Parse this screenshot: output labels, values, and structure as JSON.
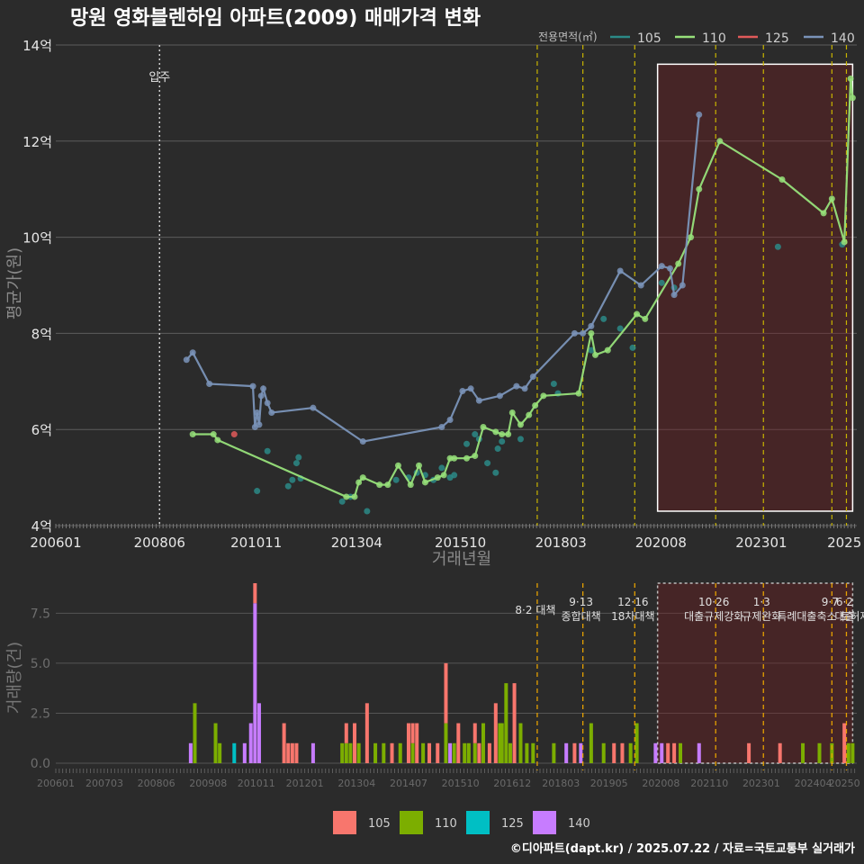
{
  "chart_data": [
    {
      "type": "line",
      "title": "망원 영화블렌하임 아파트(2009) 매매가격 변화",
      "xlabel": "거래년월",
      "ylabel": "평균가(원)",
      "ylim": [
        4,
        14
      ],
      "xlim": [
        2006.0,
        2025.3
      ],
      "x_ticks": [
        {
          "v": 2006.0,
          "label": "200601"
        },
        {
          "v": 2008.5,
          "label": "200806"
        },
        {
          "v": 2010.83,
          "label": "201011"
        },
        {
          "v": 2013.25,
          "label": "201304"
        },
        {
          "v": 2015.75,
          "label": "201510"
        },
        {
          "v": 2018.17,
          "label": "201803"
        },
        {
          "v": 2020.58,
          "label": "202008"
        },
        {
          "v": 2023.0,
          "label": "202301"
        },
        {
          "v": 2025.0,
          "label": "2025"
        }
      ],
      "y_ticks": [
        {
          "v": 4,
          "label": "4억"
        },
        {
          "v": 6,
          "label": "6억"
        },
        {
          "v": 8,
          "label": "8억"
        },
        {
          "v": 10,
          "label": "10억"
        },
        {
          "v": 12,
          "label": "12억"
        },
        {
          "v": 14,
          "label": "14억"
        }
      ],
      "legend_title": "전용면적(㎡)",
      "series": [
        {
          "name": "105",
          "color": "#2b8a87",
          "points": [
            [
              2010.85,
              4.72
            ],
            [
              2011.1,
              5.55
            ],
            [
              2011.6,
              4.82
            ],
            [
              2011.7,
              4.95
            ],
            [
              2011.8,
              5.3
            ],
            [
              2011.85,
              5.42
            ],
            [
              2011.9,
              4.98
            ],
            [
              2012.9,
              4.5
            ],
            [
              2013.1,
              4.6
            ],
            [
              2013.5,
              4.3
            ],
            [
              2014.2,
              4.95
            ],
            [
              2014.5,
              5.0
            ],
            [
              2014.7,
              5.1
            ],
            [
              2014.9,
              5.05
            ],
            [
              2015.1,
              4.95
            ],
            [
              2015.3,
              5.2
            ],
            [
              2015.5,
              5.0
            ],
            [
              2015.6,
              5.05
            ],
            [
              2015.9,
              5.7
            ],
            [
              2016.1,
              5.9
            ],
            [
              2016.2,
              5.8
            ],
            [
              2016.4,
              5.3
            ],
            [
              2016.6,
              5.1
            ],
            [
              2016.65,
              5.6
            ],
            [
              2016.75,
              5.75
            ],
            [
              2017.2,
              5.8
            ],
            [
              2018.0,
              6.95
            ],
            [
              2018.1,
              6.75
            ],
            [
              2018.9,
              7.65
            ],
            [
              2019.2,
              8.3
            ],
            [
              2019.6,
              8.1
            ],
            [
              2019.9,
              7.7
            ],
            [
              2020.6,
              9.05
            ],
            [
              2020.9,
              8.95
            ],
            [
              2023.4,
              9.8
            ],
            [
              2024.95,
              9.85
            ]
          ]
        },
        {
          "name": "110",
          "color": "#97e07a",
          "points": [
            [
              2009.3,
              5.9
            ],
            [
              2009.8,
              5.9
            ],
            [
              2009.9,
              5.78
            ],
            [
              2013.0,
              4.6
            ],
            [
              2013.2,
              4.6
            ],
            [
              2013.3,
              4.9
            ],
            [
              2013.4,
              5.0
            ],
            [
              2013.8,
              4.85
            ],
            [
              2014.0,
              4.85
            ],
            [
              2014.25,
              5.25
            ],
            [
              2014.55,
              4.85
            ],
            [
              2014.75,
              5.25
            ],
            [
              2014.9,
              4.9
            ],
            [
              2015.2,
              5.0
            ],
            [
              2015.35,
              5.05
            ],
            [
              2015.5,
              5.4
            ],
            [
              2015.6,
              5.4
            ],
            [
              2015.9,
              5.4
            ],
            [
              2016.1,
              5.45
            ],
            [
              2016.3,
              6.05
            ],
            [
              2016.6,
              5.95
            ],
            [
              2016.75,
              5.9
            ],
            [
              2016.9,
              5.9
            ],
            [
              2017.0,
              6.35
            ],
            [
              2017.2,
              6.1
            ],
            [
              2017.4,
              6.3
            ],
            [
              2017.55,
              6.5
            ],
            [
              2017.75,
              6.7
            ],
            [
              2018.6,
              6.75
            ],
            [
              2018.9,
              8.0
            ],
            [
              2019.0,
              7.55
            ],
            [
              2019.3,
              7.65
            ],
            [
              2020.0,
              8.4
            ],
            [
              2020.2,
              8.3
            ],
            [
              2021.0,
              9.45
            ],
            [
              2021.3,
              10.0
            ],
            [
              2021.5,
              11.0
            ],
            [
              2022.0,
              12.0
            ],
            [
              2023.5,
              11.2
            ],
            [
              2024.5,
              10.5
            ],
            [
              2024.7,
              10.8
            ],
            [
              2025.0,
              9.9
            ],
            [
              2025.15,
              13.3
            ],
            [
              2025.2,
              12.9
            ]
          ]
        },
        {
          "name": "125",
          "color": "#e05a5a",
          "points": [
            [
              2010.3,
              5.9
            ]
          ]
        },
        {
          "name": "140",
          "color": "#7a93b8",
          "points": [
            [
              2009.15,
              7.45
            ],
            [
              2009.3,
              7.6
            ],
            [
              2009.7,
              6.95
            ],
            [
              2010.75,
              6.9
            ],
            [
              2010.8,
              6.05
            ],
            [
              2010.85,
              6.35
            ],
            [
              2010.9,
              6.1
            ],
            [
              2010.95,
              6.7
            ],
            [
              2011.0,
              6.85
            ],
            [
              2011.1,
              6.55
            ],
            [
              2011.2,
              6.35
            ],
            [
              2012.2,
              6.45
            ],
            [
              2013.4,
              5.75
            ],
            [
              2015.3,
              6.05
            ],
            [
              2015.5,
              6.2
            ],
            [
              2015.8,
              6.8
            ],
            [
              2016.0,
              6.85
            ],
            [
              2016.2,
              6.6
            ],
            [
              2016.7,
              6.7
            ],
            [
              2017.1,
              6.9
            ],
            [
              2017.3,
              6.85
            ],
            [
              2017.5,
              7.1
            ],
            [
              2018.5,
              8.0
            ],
            [
              2018.7,
              8.0
            ],
            [
              2018.9,
              8.15
            ],
            [
              2019.6,
              9.3
            ],
            [
              2020.1,
              9.0
            ],
            [
              2020.6,
              9.4
            ],
            [
              2020.8,
              9.35
            ],
            [
              2020.9,
              8.8
            ],
            [
              2021.1,
              9.0
            ],
            [
              2021.5,
              12.55
            ]
          ]
        }
      ],
      "annotations": [
        {
          "x": 2008.5,
          "label": "입주"
        }
      ],
      "policy_lines": [
        2017.6,
        2018.7,
        2019.95,
        2021.9,
        2023.05,
        2024.7,
        2025.05
      ],
      "highlight_box": {
        "x0": 2020.5,
        "x1": 2025.2,
        "y0": 4.3,
        "y1": 13.6
      }
    },
    {
      "type": "bar",
      "ylabel": "거래량(건)",
      "ylim": [
        0,
        9
      ],
      "y_ticks": [
        {
          "v": 0,
          "label": "0.0"
        },
        {
          "v": 2.5,
          "label": "2.5"
        },
        {
          "v": 5,
          "label": "5.0"
        },
        {
          "v": 7.5,
          "label": "7.5"
        }
      ],
      "x_ticks": [
        {
          "v": 2006.0,
          "label": "200601"
        },
        {
          "v": 2007.17,
          "label": "200703"
        },
        {
          "v": 2008.42,
          "label": "200806"
        },
        {
          "v": 2009.67,
          "label": "200908"
        },
        {
          "v": 2010.83,
          "label": "201011"
        },
        {
          "v": 2012.0,
          "label": "201201"
        },
        {
          "v": 2013.25,
          "label": "201304"
        },
        {
          "v": 2014.5,
          "label": "201407"
        },
        {
          "v": 2015.75,
          "label": "201510"
        },
        {
          "v": 2017.0,
          "label": "201612"
        },
        {
          "v": 2018.17,
          "label": "201803"
        },
        {
          "v": 2019.33,
          "label": "201905"
        },
        {
          "v": 2020.58,
          "label": "202008"
        },
        {
          "v": 2021.75,
          "label": "202110"
        },
        {
          "v": 2023.0,
          "label": "202301"
        },
        {
          "v": 2024.25,
          "label": "202404"
        },
        {
          "v": 2025.0,
          "label": "20250"
        }
      ],
      "series_colors": {
        "105": "#f8766d",
        "110": "#7cae00",
        "125": "#00bfc4",
        "140": "#c77cff"
      },
      "bars": [
        [
          2009.25,
          {
            "140": 1
          }
        ],
        [
          2009.35,
          {
            "110": 3
          }
        ],
        [
          2009.85,
          {
            "110": 2
          }
        ],
        [
          2009.95,
          {
            "110": 1
          }
        ],
        [
          2010.3,
          {
            "125": 1
          }
        ],
        [
          2010.55,
          {
            "140": 1
          }
        ],
        [
          2010.7,
          {
            "140": 2
          }
        ],
        [
          2010.8,
          {
            "140": 8,
            "105": 1
          }
        ],
        [
          2010.9,
          {
            "140": 3
          }
        ],
        [
          2011.5,
          {
            "105": 2
          }
        ],
        [
          2011.6,
          {
            "105": 1
          }
        ],
        [
          2011.7,
          {
            "105": 1
          }
        ],
        [
          2011.8,
          {
            "105": 1
          }
        ],
        [
          2012.2,
          {
            "140": 1
          }
        ],
        [
          2012.9,
          {
            "110": 1
          }
        ],
        [
          2013.0,
          {
            "110": 1,
            "105": 1
          }
        ],
        [
          2013.1,
          {
            "110": 1
          }
        ],
        [
          2013.2,
          {
            "105": 2
          }
        ],
        [
          2013.3,
          {
            "110": 1
          }
        ],
        [
          2013.5,
          {
            "105": 3
          }
        ],
        [
          2013.7,
          {
            "110": 1
          }
        ],
        [
          2013.9,
          {
            "110": 1
          }
        ],
        [
          2014.1,
          {
            "105": 1
          }
        ],
        [
          2014.3,
          {
            "110": 1
          }
        ],
        [
          2014.5,
          {
            "105": 2
          }
        ],
        [
          2014.6,
          {
            "110": 1,
            "105": 1
          }
        ],
        [
          2014.7,
          {
            "105": 2
          }
        ],
        [
          2014.85,
          {
            "110": 1
          }
        ],
        [
          2015.0,
          {
            "105": 1
          }
        ],
        [
          2015.2,
          {
            "105": 1
          }
        ],
        [
          2015.4,
          {
            "110": 2,
            "105": 3
          }
        ],
        [
          2015.5,
          {
            "140": 1
          }
        ],
        [
          2015.6,
          {
            "110": 1
          }
        ],
        [
          2015.7,
          {
            "105": 2
          }
        ],
        [
          2015.85,
          {
            "110": 1
          }
        ],
        [
          2015.95,
          {
            "110": 1
          }
        ],
        [
          2016.1,
          {
            "110": 1,
            "105": 1
          }
        ],
        [
          2016.2,
          {
            "105": 1
          }
        ],
        [
          2016.3,
          {
            "110": 2
          }
        ],
        [
          2016.45,
          {
            "105": 1
          }
        ],
        [
          2016.6,
          {
            "105": 3
          }
        ],
        [
          2016.7,
          {
            "110": 2
          }
        ],
        [
          2016.75,
          {
            "110": 2
          }
        ],
        [
          2016.85,
          {
            "110": 4
          }
        ],
        [
          2016.95,
          {
            "110": 1
          }
        ],
        [
          2017.05,
          {
            "105": 4
          }
        ],
        [
          2017.2,
          {
            "110": 2
          }
        ],
        [
          2017.35,
          {
            "110": 1
          }
        ],
        [
          2017.5,
          {
            "110": 1
          }
        ],
        [
          2018.0,
          {
            "110": 1
          }
        ],
        [
          2018.3,
          {
            "140": 1
          }
        ],
        [
          2018.5,
          {
            "105": 1
          }
        ],
        [
          2018.65,
          {
            "140": 1
          }
        ],
        [
          2018.9,
          {
            "110": 2
          }
        ],
        [
          2019.2,
          {
            "110": 1
          }
        ],
        [
          2019.45,
          {
            "105": 1
          }
        ],
        [
          2019.65,
          {
            "105": 1
          }
        ],
        [
          2019.85,
          {
            "110": 1
          }
        ],
        [
          2020.0,
          {
            "110": 2
          }
        ],
        [
          2020.45,
          {
            "140": 1
          }
        ],
        [
          2020.6,
          {
            "140": 1
          }
        ],
        [
          2020.75,
          {
            "105": 1
          }
        ],
        [
          2020.9,
          {
            "105": 1
          }
        ],
        [
          2021.05,
          {
            "110": 1
          }
        ],
        [
          2021.5,
          {
            "140": 1
          }
        ],
        [
          2022.7,
          {
            "105": 1
          }
        ],
        [
          2023.45,
          {
            "105": 1
          }
        ],
        [
          2024.0,
          {
            "110": 1
          }
        ],
        [
          2024.4,
          {
            "110": 1
          }
        ],
        [
          2024.7,
          {
            "110": 1
          }
        ],
        [
          2025.0,
          {
            "105": 2
          }
        ],
        [
          2025.1,
          {
            "110": 1
          }
        ],
        [
          2025.2,
          {
            "110": 1
          }
        ]
      ],
      "policies": [
        {
          "x": 2017.6,
          "lines": [
            "8·2 대책"
          ]
        },
        {
          "x": 2018.7,
          "lines": [
            "9·13",
            "종합대책"
          ]
        },
        {
          "x": 2019.95,
          "lines": [
            "12·16",
            "18차대책"
          ]
        },
        {
          "x": 2021.9,
          "lines": [
            "10·26",
            "대출규제강화"
          ]
        },
        {
          "x": 2023.05,
          "lines": [
            "1·3",
            "규제완화"
          ]
        },
        {
          "x": 2024.7,
          "lines": [
            "9·7",
            "특례대출축소 토허제 해"
          ]
        },
        {
          "x": 2025.05,
          "lines": [
            "6·2",
            "대출"
          ]
        }
      ],
      "highlight_box": {
        "x0": 2020.5,
        "x1": 2025.2
      }
    }
  ],
  "footer": "©디아파트(dapt.kr) / 2025.07.22 / 자료=국토교통부 실거래가"
}
